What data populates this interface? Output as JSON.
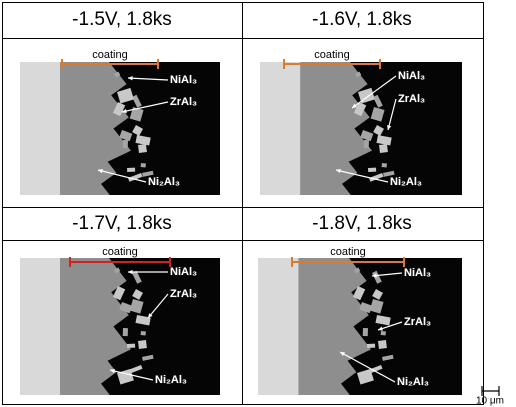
{
  "panels": [
    {
      "title": "-1.5V, 1.8ks",
      "coating": "coating",
      "labels": [
        "NiAl₃",
        "ZrAl₃",
        "Ni₂Al₃"
      ]
    },
    {
      "title": "-1.6V, 1.8ks",
      "coating": "coating",
      "labels": [
        "NiAl₃",
        "ZrAl₃",
        "Ni₂Al₃"
      ]
    },
    {
      "title": "-1.7V, 1.8ks",
      "coating": "coating",
      "labels": [
        "NiAl₃",
        "ZrAl₃",
        "Ni₂Al₃"
      ]
    },
    {
      "title": "-1.8V, 1.8ks",
      "coating": "coating",
      "labels": [
        "NiAl₃",
        "ZrAl₃",
        "Ni₂Al₃"
      ]
    }
  ],
  "scale_bar": {
    "label": "10 μm"
  }
}
